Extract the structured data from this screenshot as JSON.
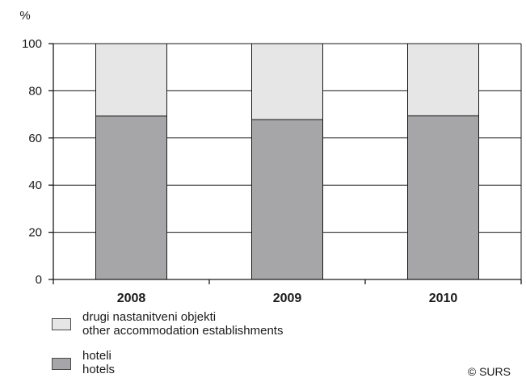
{
  "chart_data": {
    "type": "bar",
    "stacked": true,
    "ylabel": "%",
    "ylim": [
      0,
      100
    ],
    "yticks": [
      0,
      20,
      40,
      60,
      80,
      100
    ],
    "grid": true,
    "categories": [
      "2008",
      "2009",
      "2010"
    ],
    "series": [
      {
        "name": "hoteli / hotels",
        "name_sl": "hoteli",
        "name_en": "hotels",
        "color": "#a6a6a8",
        "values": [
          69.3,
          67.8,
          69.4
        ]
      },
      {
        "name": "drugi nastanitveni objekti / other accommodation establishments",
        "name_sl": "drugi nastanitveni objekti",
        "name_en": "other accommodation establishments",
        "color": "#e6e6e6",
        "values": [
          30.7,
          32.2,
          30.6
        ]
      }
    ],
    "legend_placement": "bottom-left"
  },
  "copyright": "© SURS"
}
